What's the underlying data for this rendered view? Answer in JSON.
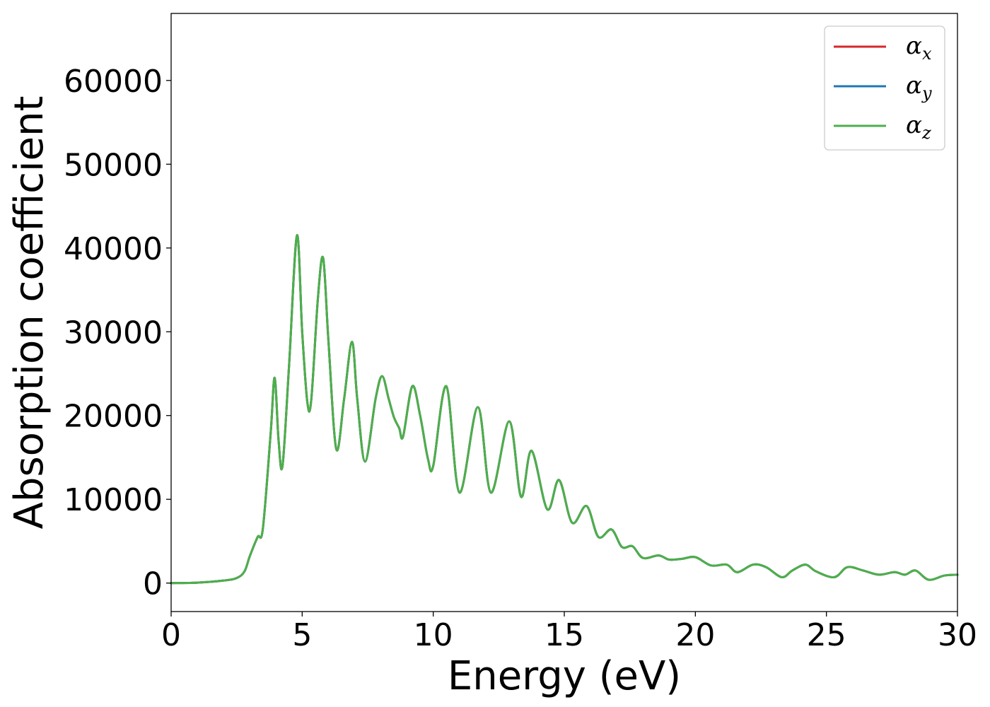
{
  "chart_data": {
    "type": "line",
    "title": "",
    "xlabel": "Energy (eV)",
    "ylabel": "Absorption coefficient",
    "xlim": [
      0,
      30
    ],
    "ylim": [
      -3400,
      68000
    ],
    "x_ticks": [
      "0",
      "5",
      "10",
      "15",
      "20",
      "25",
      "30"
    ],
    "y_ticks": [
      "0",
      "10000",
      "20000",
      "30000",
      "40000",
      "50000",
      "60000"
    ],
    "grid": false,
    "legend_position": "top-right",
    "series": [
      {
        "name": "αx",
        "symbol": "α",
        "subscript": "x",
        "color": "#d62728",
        "x": [
          0,
          1,
          2,
          2.5,
          2.8,
          3.0,
          3.3,
          3.5,
          3.8,
          3.95,
          4.1,
          4.25,
          4.5,
          4.8,
          5.0,
          5.2,
          5.35,
          5.6,
          5.8,
          6.0,
          6.3,
          6.6,
          6.9,
          7.1,
          7.4,
          7.8,
          8.05,
          8.3,
          8.5,
          8.7,
          8.85,
          9.2,
          9.5,
          9.8,
          10.0,
          10.5,
          11.0,
          11.7,
          12.2,
          12.9,
          13.35,
          13.75,
          14.35,
          14.8,
          15.3,
          15.85,
          16.3,
          16.8,
          17.2,
          17.6,
          18.0,
          18.6,
          19.0,
          19.5,
          20.0,
          20.6,
          21.2,
          21.6,
          22.2,
          22.7,
          23.3,
          23.7,
          24.2,
          24.6,
          25.3,
          25.8,
          26.4,
          27.0,
          27.6,
          28.0,
          28.4,
          28.9,
          29.5,
          30.0
        ],
        "values": [
          0,
          50,
          300,
          600,
          1400,
          3200,
          5500,
          6500,
          18000,
          24500,
          17000,
          14000,
          26000,
          41500,
          30000,
          21500,
          22000,
          34000,
          38800,
          29000,
          16000,
          22000,
          28800,
          22000,
          14500,
          22000,
          24700,
          22000,
          19800,
          18500,
          17500,
          23500,
          20000,
          14800,
          14000,
          23500,
          10800,
          21000,
          10800,
          19300,
          10300,
          15800,
          8800,
          12300,
          7200,
          9200,
          5500,
          6400,
          4300,
          4400,
          3000,
          3300,
          2800,
          2900,
          3100,
          2100,
          2200,
          1300,
          2200,
          1900,
          700,
          1500,
          2200,
          1400,
          700,
          1900,
          1500,
          1000,
          1300,
          1000,
          1500,
          400,
          900,
          1000
        ]
      },
      {
        "name": "αy",
        "symbol": "α",
        "subscript": "y",
        "color": "#1f77b4",
        "x": [
          0,
          1,
          2,
          2.5,
          2.8,
          3.0,
          3.3,
          3.5,
          3.8,
          3.95,
          4.1,
          4.25,
          4.5,
          4.8,
          5.0,
          5.2,
          5.35,
          5.6,
          5.8,
          6.0,
          6.3,
          6.6,
          6.9,
          7.1,
          7.4,
          7.8,
          8.05,
          8.3,
          8.5,
          8.7,
          8.85,
          9.2,
          9.5,
          9.8,
          10.0,
          10.5,
          11.0,
          11.7,
          12.2,
          12.9,
          13.35,
          13.75,
          14.35,
          14.8,
          15.3,
          15.85,
          16.3,
          16.8,
          17.2,
          17.6,
          18.0,
          18.6,
          19.0,
          19.5,
          20.0,
          20.6,
          21.2,
          21.6,
          22.2,
          22.7,
          23.3,
          23.7,
          24.2,
          24.6,
          25.3,
          25.8,
          26.4,
          27.0,
          27.6,
          28.0,
          28.4,
          28.9,
          29.5,
          30.0
        ],
        "values": [
          0,
          50,
          300,
          600,
          1400,
          3200,
          5500,
          6500,
          18000,
          24500,
          17000,
          14000,
          26000,
          41500,
          30000,
          21500,
          22000,
          34000,
          38800,
          29000,
          16000,
          22000,
          28800,
          22000,
          14500,
          22000,
          24700,
          22000,
          19800,
          18500,
          17500,
          23500,
          20000,
          14800,
          14000,
          23500,
          10800,
          21000,
          10800,
          19300,
          10300,
          15800,
          8800,
          12300,
          7200,
          9200,
          5500,
          6400,
          4300,
          4400,
          3000,
          3300,
          2800,
          2900,
          3100,
          2100,
          2200,
          1300,
          2200,
          1900,
          700,
          1500,
          2200,
          1400,
          700,
          1900,
          1500,
          1000,
          1300,
          1000,
          1500,
          400,
          900,
          1000
        ]
      },
      {
        "name": "αz",
        "symbol": "α",
        "subscript": "z",
        "color": "#4daf4a",
        "x": [
          0,
          1,
          2,
          2.5,
          2.8,
          3.0,
          3.3,
          3.5,
          3.8,
          3.95,
          4.1,
          4.25,
          4.5,
          4.8,
          5.0,
          5.2,
          5.35,
          5.6,
          5.8,
          6.0,
          6.3,
          6.6,
          6.9,
          7.1,
          7.4,
          7.8,
          8.05,
          8.3,
          8.5,
          8.7,
          8.85,
          9.2,
          9.5,
          9.8,
          10.0,
          10.5,
          11.0,
          11.7,
          12.2,
          12.9,
          13.35,
          13.75,
          14.35,
          14.8,
          15.3,
          15.85,
          16.3,
          16.8,
          17.2,
          17.6,
          18.0,
          18.6,
          19.0,
          19.5,
          20.0,
          20.6,
          21.2,
          21.6,
          22.2,
          22.7,
          23.3,
          23.7,
          24.2,
          24.6,
          25.3,
          25.8,
          26.4,
          27.0,
          27.6,
          28.0,
          28.4,
          28.9,
          29.5,
          30.0
        ],
        "values": [
          0,
          50,
          300,
          600,
          1400,
          3200,
          5500,
          6500,
          18000,
          24500,
          17000,
          14000,
          26000,
          41500,
          30000,
          21500,
          22000,
          34000,
          38800,
          29000,
          16000,
          22000,
          28800,
          22000,
          14500,
          22000,
          24700,
          22000,
          19800,
          18500,
          17500,
          23500,
          20000,
          14800,
          14000,
          23500,
          10800,
          21000,
          10800,
          19300,
          10300,
          15800,
          8800,
          12300,
          7200,
          9200,
          5500,
          6400,
          4300,
          4400,
          3000,
          3300,
          2800,
          2900,
          3100,
          2100,
          2200,
          1300,
          2200,
          1900,
          700,
          1500,
          2200,
          1400,
          700,
          1900,
          1500,
          1000,
          1300,
          1000,
          1500,
          400,
          900,
          1000
        ]
      }
    ]
  }
}
